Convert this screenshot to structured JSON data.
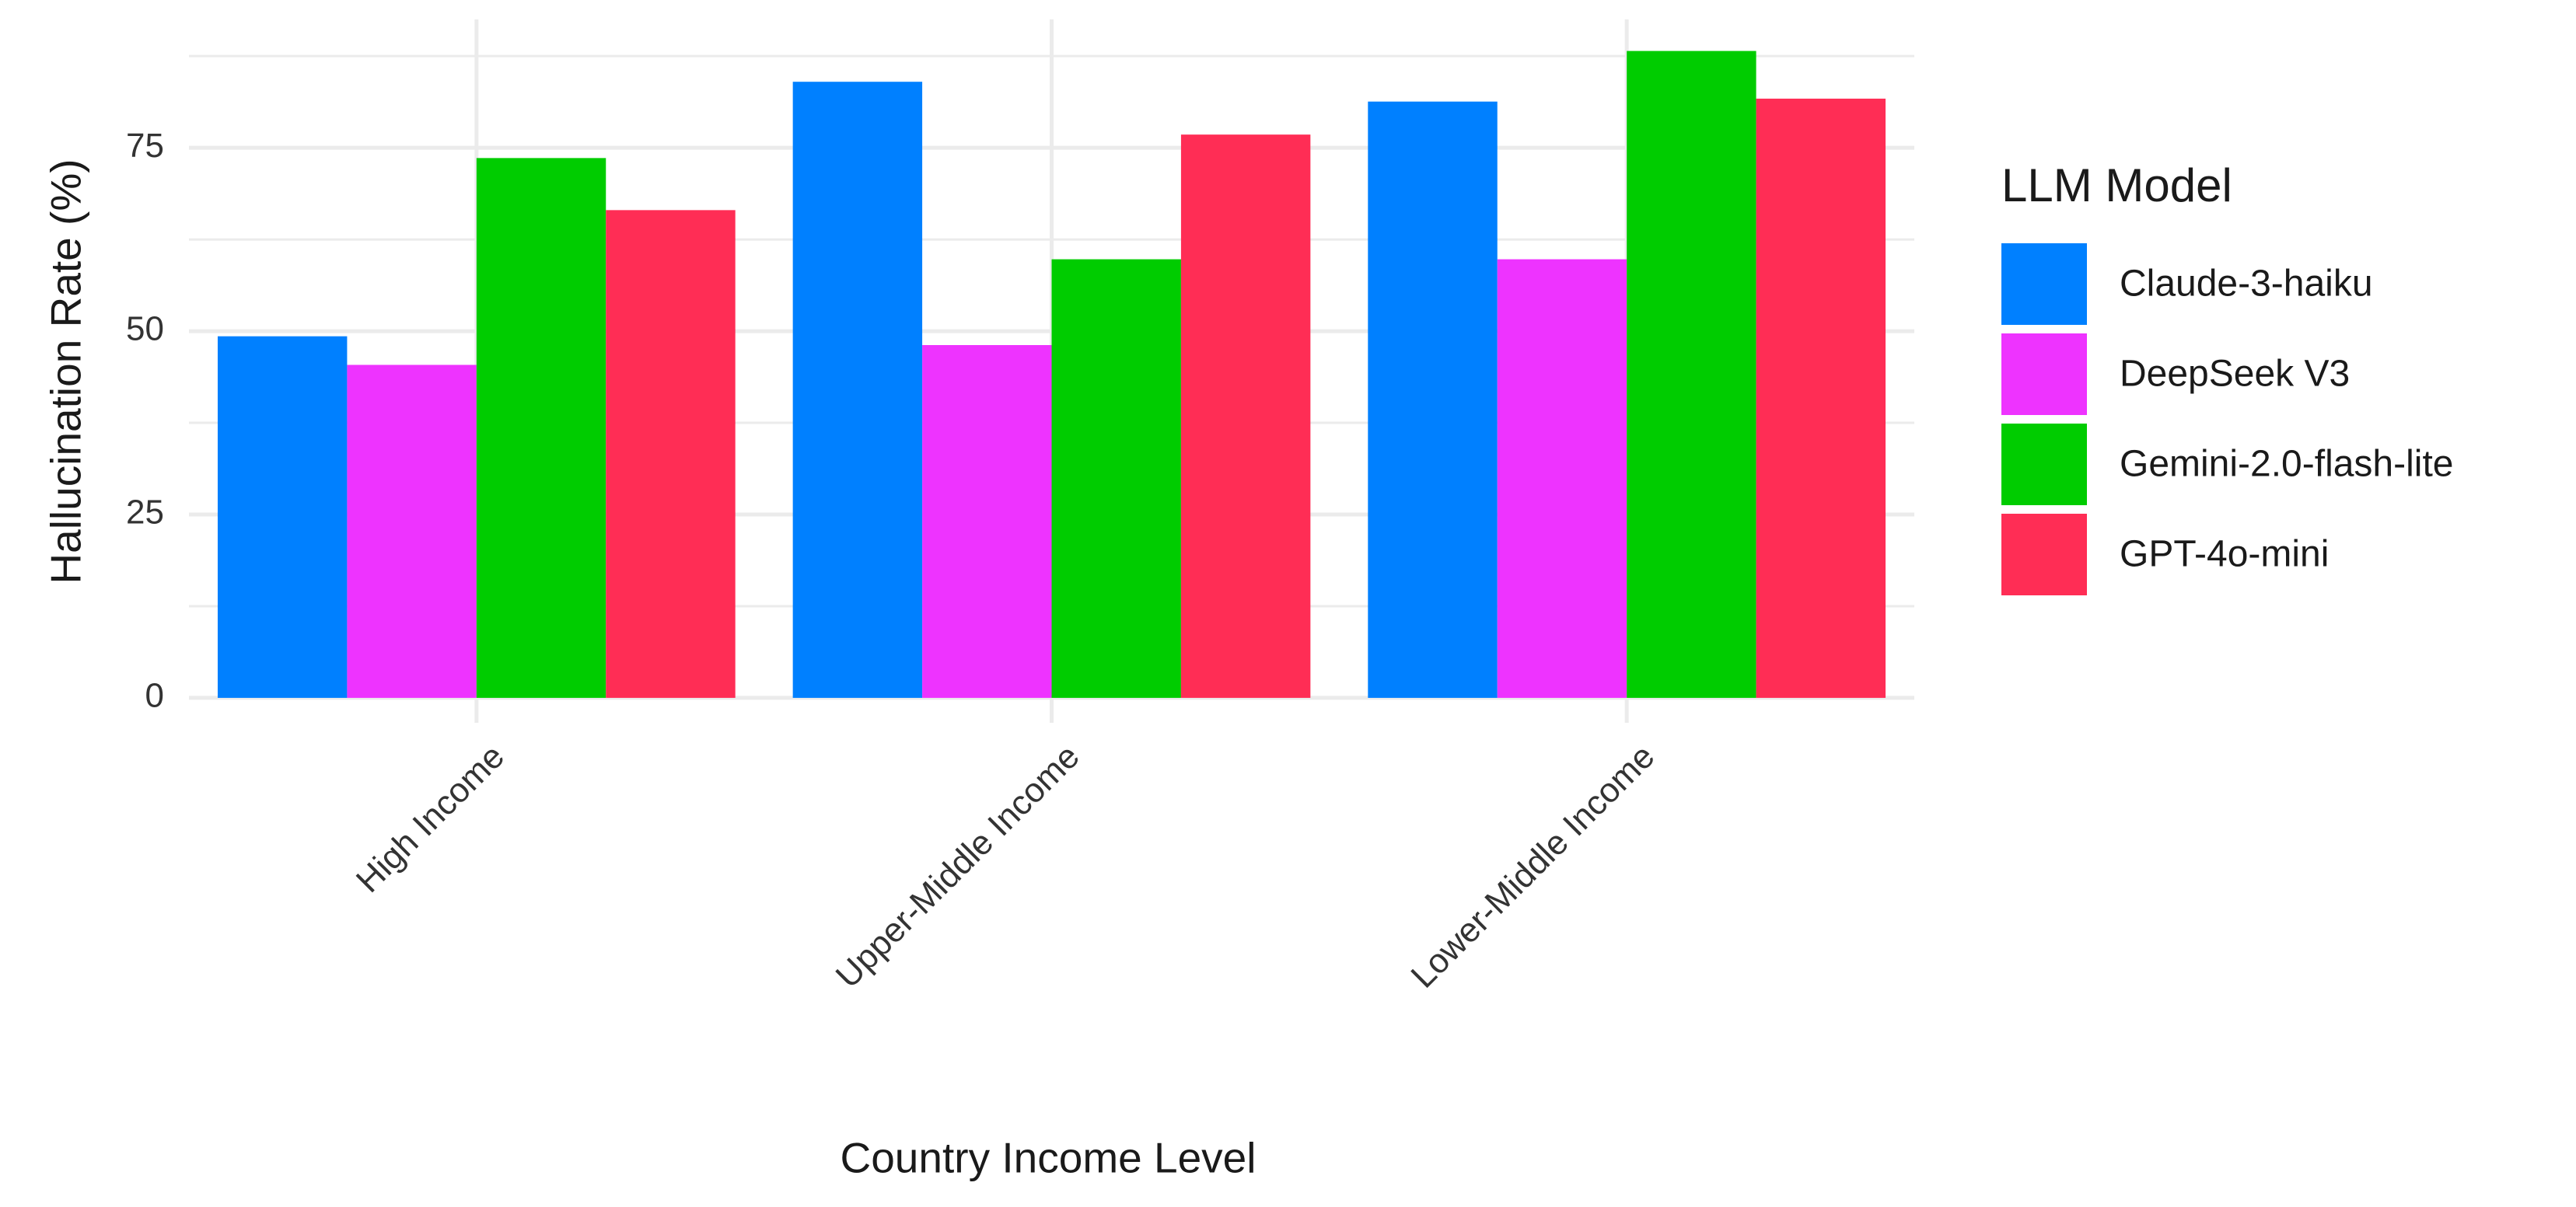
{
  "chart_data": {
    "type": "bar",
    "x_label": "Country Income Level",
    "y_label": "Hallucination Rate (%)",
    "legend_title": "LLM Model",
    "legend_position": "right",
    "categories": [
      "High Income",
      "Upper-Middle Income",
      "Lower-Middle Income"
    ],
    "series": [
      {
        "name": "Claude-3-haiku",
        "color": "#0080ff",
        "values": [
          49.3,
          84.0,
          81.3
        ]
      },
      {
        "name": "DeepSeek V3",
        "color": "#ee33ff",
        "values": [
          45.4,
          48.1,
          59.8
        ]
      },
      {
        "name": "Gemini-2.0-flash-lite",
        "color": "#00cc00",
        "values": [
          73.6,
          59.8,
          88.2
        ]
      },
      {
        "name": "GPT-4o-mini",
        "color": "#ff2d55",
        "values": [
          66.5,
          76.8,
          81.7
        ]
      }
    ],
    "ylim": [
      -3.4,
      92.5
    ],
    "yticks": [
      0,
      25,
      50,
      75
    ],
    "minor_yticks": [
      12.5,
      37.5,
      62.5,
      87.5
    ],
    "grid": true
  }
}
